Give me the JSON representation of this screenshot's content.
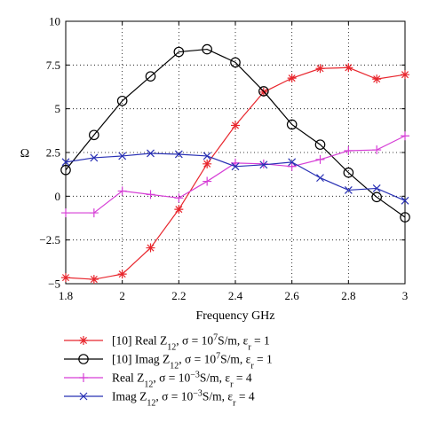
{
  "chart_data": {
    "type": "line",
    "xlabel": "Frequency GHz",
    "ylabel": "Ω",
    "xlim": [
      1.8,
      3.0
    ],
    "ylim": [
      -5,
      10
    ],
    "xticks": [
      "1.8",
      "2",
      "2.2",
      "2.4",
      "2.6",
      "2.8",
      "3"
    ],
    "xtick_values": [
      1.8,
      2.0,
      2.2,
      2.4,
      2.6,
      2.8,
      3.0
    ],
    "yticks": [
      "−5",
      "−2.5",
      "0",
      "2.5",
      "5",
      "7.5",
      "10"
    ],
    "ytick_values": [
      -5,
      -2.5,
      0,
      2.5,
      5,
      7.5,
      10
    ],
    "grid": "dotted",
    "legend_position": "below",
    "x": [
      1.8,
      1.9,
      2.0,
      2.1,
      2.2,
      2.3,
      2.4,
      2.5,
      2.6,
      2.7,
      2.8,
      2.9,
      3.0
    ],
    "series": [
      {
        "legend_segments": [
          [
            "[10] Real Z",
            ""
          ],
          [
            "12",
            "sub"
          ],
          [
            ", σ = 10",
            ""
          ],
          [
            "7",
            "sup"
          ],
          [
            "S/m, ε",
            ""
          ],
          [
            "r",
            "sub"
          ],
          [
            " = 1",
            ""
          ]
        ],
        "color": "#e8262d",
        "marker": "asterisk",
        "values": [
          -4.65,
          -4.75,
          -4.45,
          -2.95,
          -0.75,
          1.85,
          4.05,
          5.95,
          6.75,
          7.3,
          7.35,
          6.7,
          6.95
        ]
      },
      {
        "legend_segments": [
          [
            "[10] Imag Z",
            ""
          ],
          [
            "12",
            "sub"
          ],
          [
            ", σ = 10",
            ""
          ],
          [
            "7",
            "sup"
          ],
          [
            "S/m, ε",
            ""
          ],
          [
            "r",
            "sub"
          ],
          [
            " = 1",
            ""
          ]
        ],
        "color": "#000000",
        "marker": "circle",
        "values": [
          1.5,
          3.5,
          5.45,
          6.85,
          8.25,
          8.4,
          7.65,
          6.0,
          4.1,
          2.95,
          1.35,
          -0.05,
          -1.2
        ]
      },
      {
        "legend_segments": [
          [
            "Real Z",
            ""
          ],
          [
            "12",
            "sub"
          ],
          [
            ", σ = 10",
            ""
          ],
          [
            "−3",
            "sup"
          ],
          [
            "S/m, ε",
            ""
          ],
          [
            "r",
            "sub"
          ],
          [
            " = 4",
            ""
          ]
        ],
        "color": "#d63fd6",
        "marker": "plus",
        "values": [
          -0.95,
          -0.95,
          0.3,
          0.1,
          -0.1,
          0.85,
          1.9,
          1.85,
          1.7,
          2.1,
          2.6,
          2.65,
          3.45
        ]
      },
      {
        "legend_segments": [
          [
            "Imag Z",
            ""
          ],
          [
            "12",
            "sub"
          ],
          [
            ", σ = 10",
            ""
          ],
          [
            "−3",
            "sup"
          ],
          [
            "S/m, ε",
            ""
          ],
          [
            "r",
            "sub"
          ],
          [
            " = 4",
            ""
          ]
        ],
        "color": "#2830b4",
        "marker": "x",
        "values": [
          1.95,
          2.2,
          2.3,
          2.45,
          2.4,
          2.3,
          1.7,
          1.8,
          1.95,
          1.05,
          0.35,
          0.45,
          -0.25
        ]
      }
    ]
  }
}
